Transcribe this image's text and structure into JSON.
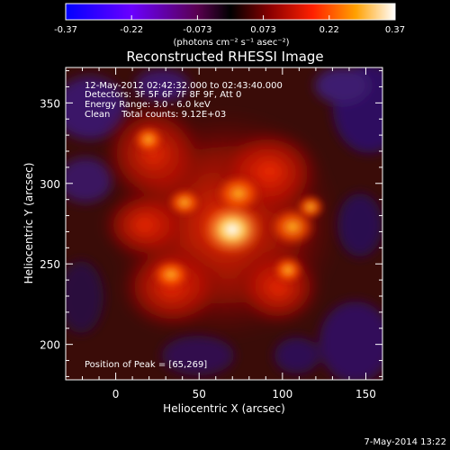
{
  "colorbar": {
    "tick_labels": [
      "-0.37",
      "-0.22",
      "-0.073",
      "0.073",
      "0.22",
      "0.37"
    ],
    "units_label": "(photons cm⁻² s⁻¹ asec⁻²)",
    "stops": [
      {
        "v": 0.0,
        "c": "#0000ff"
      },
      {
        "v": 0.2,
        "c": "#6a00ff"
      },
      {
        "v": 0.4,
        "c": "#5a0050"
      },
      {
        "v": 0.5,
        "c": "#000000"
      },
      {
        "v": 0.62,
        "c": "#8a0000"
      },
      {
        "v": 0.75,
        "c": "#ff2000"
      },
      {
        "v": 0.88,
        "c": "#ffa000"
      },
      {
        "v": 1.0,
        "c": "#ffffff"
      }
    ]
  },
  "plot": {
    "title": "Reconstructed RHESSI Image",
    "xlabel": "Heliocentric X (arcsec)",
    "ylabel": "Heliocentric Y (arcsec)",
    "x_ticks": [
      "0",
      "50",
      "100",
      "150"
    ],
    "y_ticks": [
      "200",
      "250",
      "300",
      "350"
    ],
    "xlim": [
      -30,
      160
    ],
    "ylim": [
      178,
      372
    ]
  },
  "annotations": {
    "time_range": "12-May-2012 02:42:32.000 to 02:43:40.000",
    "detectors": "Detectors: 3F 5F 6F 7F 8F 9F, Att 0",
    "energy_range": "Energy Range: 3.0 - 6.0 keV",
    "method_counts": "Clean    Total counts: 9.12E+03",
    "peak_position": "Position of Peak = [65,269]"
  },
  "footer": {
    "timestamp": "7-May-2014 13:22"
  }
}
